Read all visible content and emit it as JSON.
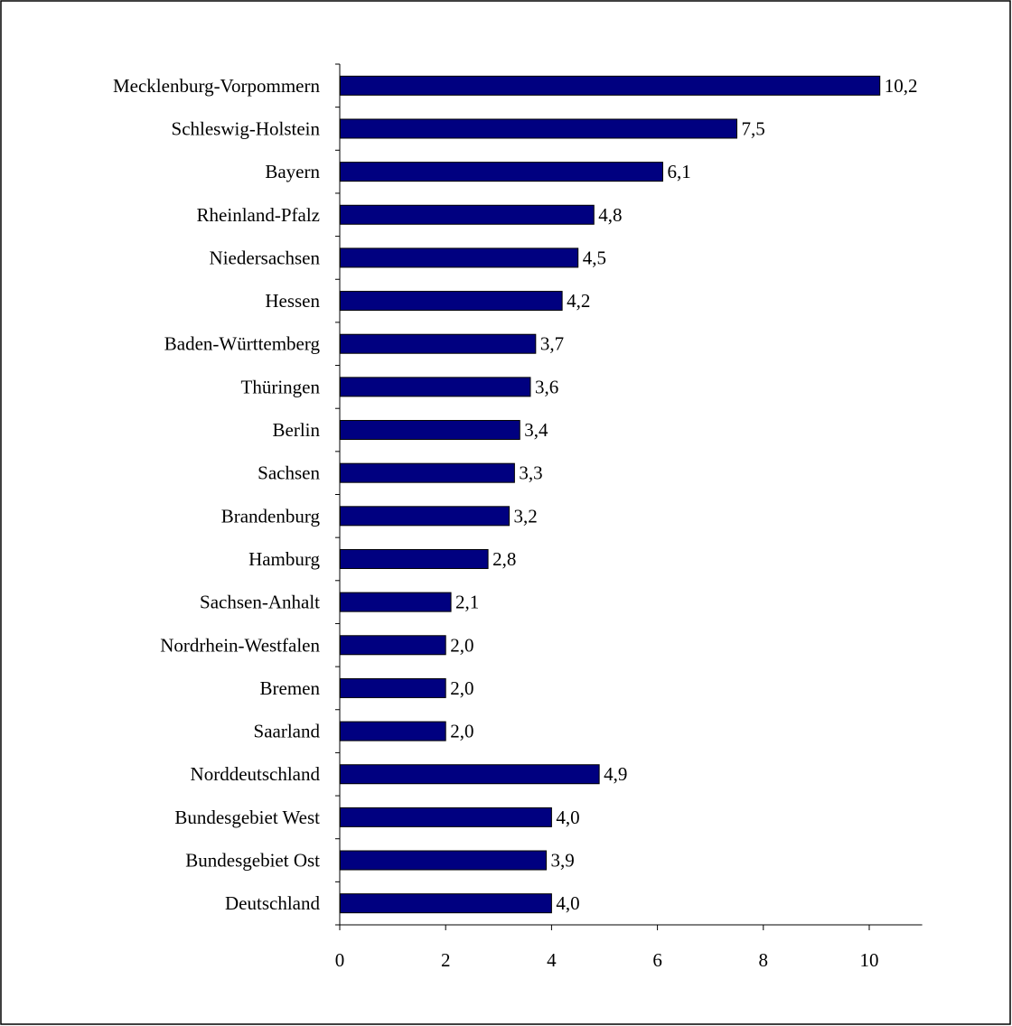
{
  "chart_data": {
    "type": "bar",
    "orientation": "horizontal",
    "categories": [
      "Mecklenburg-Vorpommern",
      "Schleswig-Holstein",
      "Bayern",
      "Rheinland-Pfalz",
      "Niedersachsen",
      "Hessen",
      "Baden-Württemberg",
      "Thüringen",
      "Berlin",
      "Sachsen",
      "Brandenburg",
      "Hamburg",
      "Sachsen-Anhalt",
      "Nordrhein-Westfalen",
      "Bremen",
      "Saarland",
      "Norddeutschland",
      "Bundesgebiet West",
      "Bundesgebiet Ost",
      "Deutschland"
    ],
    "values": [
      10.2,
      7.5,
      6.1,
      4.8,
      4.5,
      4.2,
      3.7,
      3.6,
      3.4,
      3.3,
      3.2,
      2.8,
      2.1,
      2.0,
      2.0,
      2.0,
      4.9,
      4.0,
      3.9,
      4.0
    ],
    "value_labels": [
      "10,2",
      "7,5",
      "6,1",
      "4,8",
      "4,5",
      "4,2",
      "3,7",
      "3,6",
      "3,4",
      "3,3",
      "3,2",
      "2,8",
      "2,1",
      "2,0",
      "2,0",
      "2,0",
      "4,9",
      "4,0",
      "3,9",
      "4,0"
    ],
    "x_ticks": [
      "0",
      "2",
      "4",
      "6",
      "8",
      "10"
    ],
    "xlim": [
      0,
      11
    ],
    "bar_color": "#000080",
    "grid": false,
    "legend": "none",
    "title": "",
    "xlabel": "",
    "ylabel": ""
  }
}
